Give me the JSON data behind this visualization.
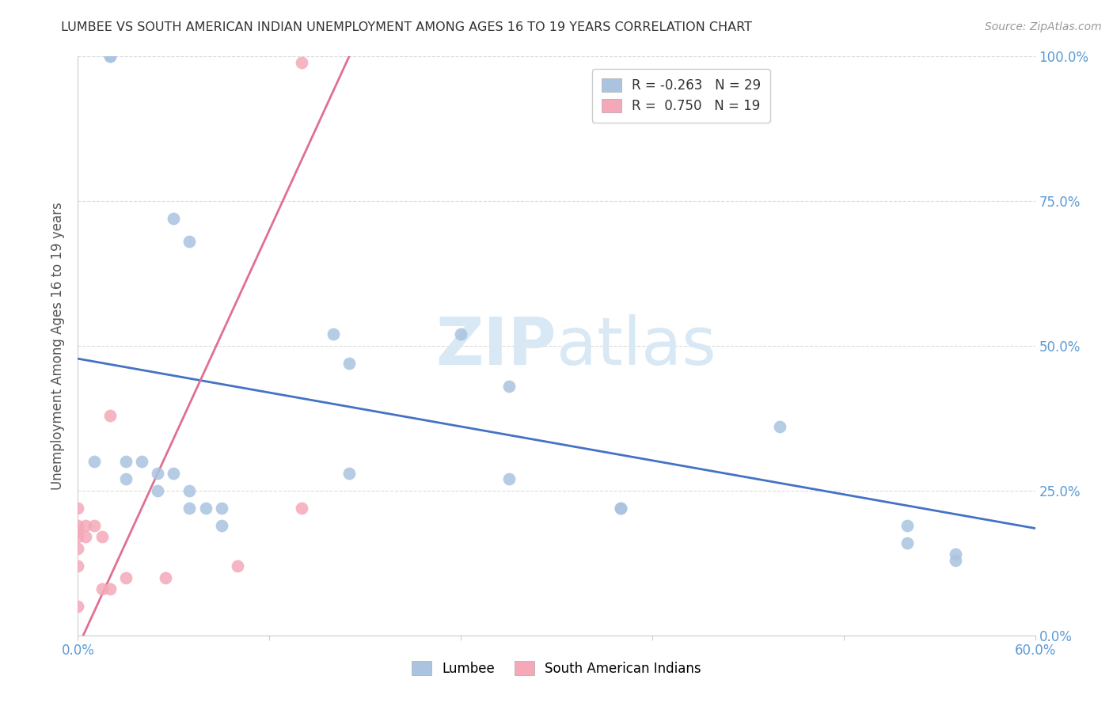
{
  "title": "LUMBEE VS SOUTH AMERICAN INDIAN UNEMPLOYMENT AMONG AGES 16 TO 19 YEARS CORRELATION CHART",
  "source": "Source: ZipAtlas.com",
  "ylabel": "Unemployment Among Ages 16 to 19 years",
  "xmin": 0.0,
  "xmax": 0.6,
  "ymin": 0.0,
  "ymax": 1.0,
  "yticks": [
    0.0,
    0.25,
    0.5,
    0.75,
    1.0
  ],
  "ytick_labels": [
    "0.0%",
    "25.0%",
    "50.0%",
    "75.0%",
    "100.0%"
  ],
  "xticks": [
    0.0,
    0.12,
    0.24,
    0.36,
    0.48,
    0.6
  ],
  "lumbee_x": [
    0.02,
    0.02,
    0.06,
    0.07,
    0.16,
    0.17,
    0.24,
    0.27,
    0.27,
    0.34,
    0.34,
    0.44,
    0.52,
    0.55,
    0.01,
    0.03,
    0.03,
    0.04,
    0.05,
    0.05,
    0.06,
    0.07,
    0.07,
    0.08,
    0.09,
    0.09,
    0.17,
    0.52,
    0.55
  ],
  "lumbee_y": [
    1.0,
    1.0,
    0.72,
    0.68,
    0.52,
    0.47,
    0.52,
    0.43,
    0.27,
    0.22,
    0.22,
    0.36,
    0.16,
    0.13,
    0.3,
    0.3,
    0.27,
    0.3,
    0.28,
    0.25,
    0.28,
    0.25,
    0.22,
    0.22,
    0.22,
    0.19,
    0.28,
    0.19,
    0.14
  ],
  "south_x": [
    0.0,
    0.0,
    0.0,
    0.0,
    0.0,
    0.0,
    0.0,
    0.005,
    0.005,
    0.01,
    0.015,
    0.015,
    0.02,
    0.02,
    0.03,
    0.055,
    0.1,
    0.14,
    0.14
  ],
  "south_y": [
    0.05,
    0.12,
    0.15,
    0.17,
    0.18,
    0.19,
    0.22,
    0.17,
    0.19,
    0.19,
    0.17,
    0.08,
    0.08,
    0.38,
    0.1,
    0.1,
    0.12,
    0.99,
    0.22
  ],
  "lumbee_r": -0.263,
  "lumbee_n": 29,
  "south_r": 0.75,
  "south_n": 19,
  "blue_line_y0": 0.478,
  "blue_line_y1": 0.185,
  "pink_line_slope": 6.0,
  "pink_line_intercept": -0.02,
  "blue_dot_color": "#aac4e0",
  "pink_dot_color": "#f4a8b8",
  "blue_line_color": "#4472c4",
  "pink_line_color": "#e07090",
  "axis_label_color": "#5b9bd5",
  "grid_color": "#cccccc",
  "watermark_color": "#d8e8f4",
  "title_color": "#333333",
  "source_color": "#999999"
}
